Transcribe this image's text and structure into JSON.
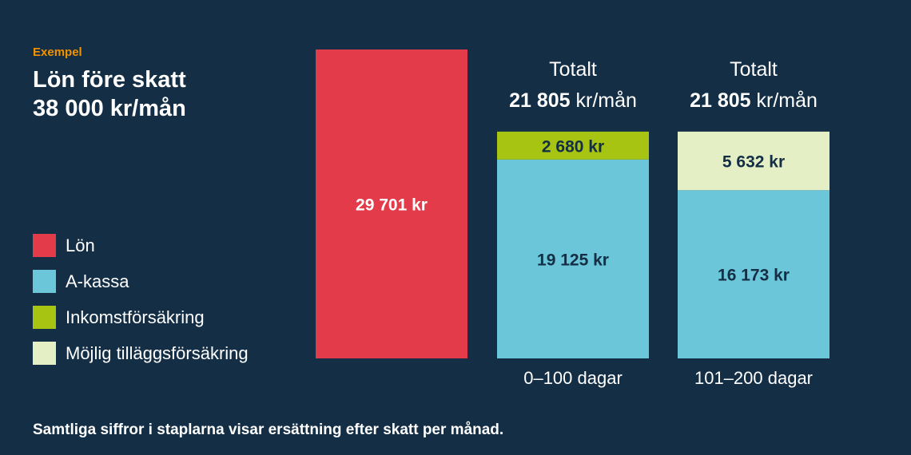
{
  "eyebrow": "Exempel",
  "headline": {
    "line1": "Lön före skatt",
    "line2": "38 000 kr/mån"
  },
  "legend": [
    {
      "label": "Lön",
      "color": "#e43b4a"
    },
    {
      "label": "A-kassa",
      "color": "#6ac6d8"
    },
    {
      "label": "Inkomstförsäkring",
      "color": "#a8c412"
    },
    {
      "label": "Möjlig tilläggsförsäkring",
      "color": "#e5efc6"
    }
  ],
  "footnote": "Samtliga siffror i staplarna visar ersättning efter skatt per månad.",
  "chart_data": {
    "type": "bar",
    "stacked": true,
    "categories": [
      "",
      "0–100 dagar",
      "101–200 dagar"
    ],
    "series": [
      {
        "name": "Lön",
        "color": "#e43b4a",
        "values": [
          29701,
          0,
          0
        ],
        "labels": [
          "29 701 kr",
          "",
          ""
        ],
        "label_color": "#ffffff"
      },
      {
        "name": "A-kassa",
        "color": "#6ac6d8",
        "values": [
          0,
          19125,
          16173
        ],
        "labels": [
          "",
          "19 125 kr",
          "16 173 kr"
        ],
        "label_color": "#132e45"
      },
      {
        "name": "Inkomstförsäkring",
        "color": "#a8c412",
        "values": [
          0,
          2680,
          0
        ],
        "labels": [
          "",
          "2 680 kr",
          ""
        ],
        "label_color": "#132e45"
      },
      {
        "name": "Möjlig tilläggsförsäkring",
        "color": "#e5efc6",
        "values": [
          0,
          0,
          5632
        ],
        "labels": [
          "",
          "",
          "5 632 kr"
        ],
        "label_color": "#132e45"
      }
    ],
    "totals": [
      null,
      {
        "heading": "Totalt",
        "value": "21 805",
        "unit": " kr/mån"
      },
      {
        "heading": "Totalt",
        "value": "21 805",
        "unit": " kr/mån"
      }
    ],
    "ylim": [
      0,
      29701
    ],
    "grid": false
  }
}
